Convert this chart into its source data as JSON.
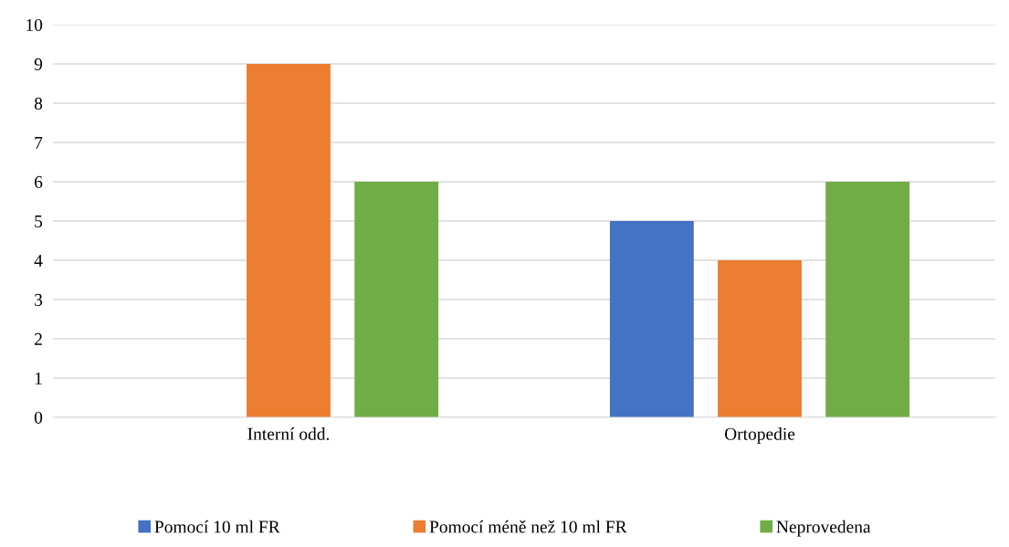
{
  "chart_data": {
    "type": "bar",
    "categories": [
      "Interní odd.",
      "Ortopedie"
    ],
    "series": [
      {
        "name": "Pomocí 10 ml FR",
        "color": "#4472c4",
        "values": [
          0,
          5
        ]
      },
      {
        "name": "Pomocí méně než 10 ml FR",
        "color": "#ed7d31",
        "values": [
          9,
          4
        ]
      },
      {
        "name": "Neprovedena",
        "color": "#70ad47",
        "values": [
          6,
          6
        ]
      }
    ],
    "ylim": [
      0,
      10
    ],
    "yticks": [
      0,
      1,
      2,
      3,
      4,
      5,
      6,
      7,
      8,
      9,
      10
    ],
    "grid": "y",
    "legend": "bottom"
  }
}
